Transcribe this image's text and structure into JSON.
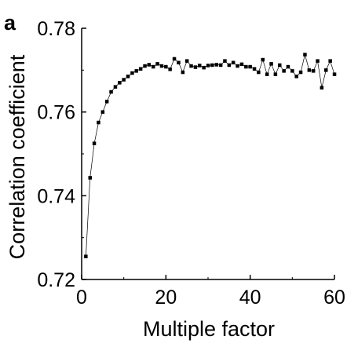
{
  "chart_data": {
    "type": "scatter",
    "panel_label": "a",
    "title": "",
    "xlabel": "Multiple factor",
    "ylabel": "Correlation coefficient",
    "xlim": [
      0,
      60
    ],
    "ylim": [
      0.72,
      0.78
    ],
    "x_ticks": [
      0,
      20,
      40,
      60
    ],
    "x_tick_labels": [
      "0",
      "20",
      "40",
      "60"
    ],
    "y_ticks": [
      0.72,
      0.74,
      0.76,
      0.78
    ],
    "y_tick_labels": [
      "0.72",
      "0.74",
      "0.76",
      "0.78"
    ],
    "grid": false,
    "marker": "square",
    "connected": true,
    "colors": {
      "marker": "#000000",
      "line": "#000000",
      "axis": "#000000"
    },
    "series": [
      {
        "x": [
          1,
          2,
          3,
          4,
          5,
          6,
          7,
          8,
          9,
          10,
          11,
          12,
          13,
          14,
          15,
          16,
          17,
          18,
          19,
          20,
          21,
          22,
          23,
          24,
          25,
          26,
          27,
          28,
          29,
          30,
          31,
          32,
          33,
          34,
          35,
          36,
          37,
          38,
          39,
          40,
          41,
          42,
          43,
          44,
          45,
          46,
          47,
          48,
          49,
          50,
          51,
          52,
          53,
          54,
          55,
          56,
          57,
          58,
          59,
          60
        ],
        "y": [
          0.7255,
          0.7443,
          0.7525,
          0.7575,
          0.76,
          0.7625,
          0.7648,
          0.766,
          0.767,
          0.7677,
          0.7685,
          0.7693,
          0.7698,
          0.7703,
          0.771,
          0.7713,
          0.7708,
          0.7715,
          0.771,
          0.7708,
          0.7702,
          0.7727,
          0.7718,
          0.7695,
          0.7722,
          0.771,
          0.7707,
          0.7711,
          0.7706,
          0.7711,
          0.7712,
          0.7713,
          0.7712,
          0.7722,
          0.7712,
          0.7718,
          0.771,
          0.7714,
          0.7708,
          0.7708,
          0.7703,
          0.7695,
          0.7725,
          0.769,
          0.7715,
          0.769,
          0.7712,
          0.7698,
          0.7708,
          0.7698,
          0.7685,
          0.7695,
          0.7737,
          0.77,
          0.7698,
          0.7722,
          0.7658,
          0.77,
          0.7722,
          0.769
        ]
      }
    ]
  }
}
